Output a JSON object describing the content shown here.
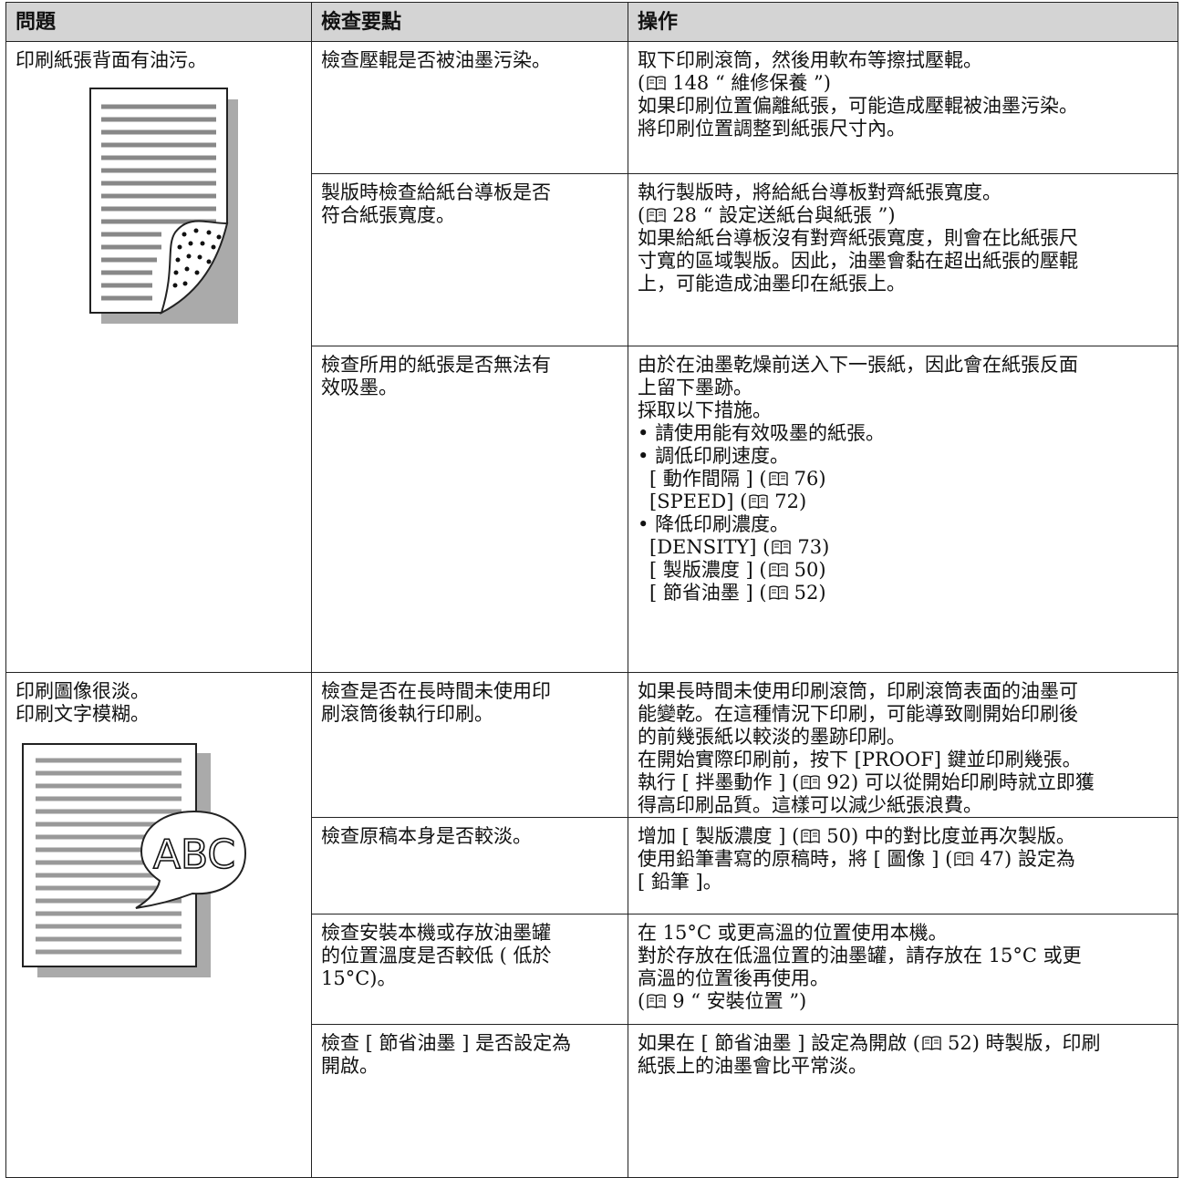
{
  "header": [
    "問題",
    "檢查要點",
    "操作"
  ],
  "problems": [
    {
      "text": [
        "印刷紙張背面有油污。"
      ],
      "checks": [
        {
          "point": [
            "檢查壓輥是否被油墨污染。"
          ],
          "action": [
            [
              "取下印刷滾筒，然後用軟布等擦拭壓輥。"
            ],
            [
              "(",
              "148 “ 維修保養 ”)"
            ],
            [
              "如果印刷位置偏離紙張，可能造成壓輥被油墨污染。"
            ],
            [
              "將印刷位置調整到紙張尺寸內。"
            ]
          ]
        },
        {
          "point": [
            "製版時檢查給紙台導板是否",
            "符合紙張寬度。"
          ],
          "action": [
            [
              "執行製版時，將給紙台導板對齊紙張寬度。"
            ],
            [
              "(",
              "28 “ 設定送紙台與紙張 ”)"
            ],
            [
              "如果給紙台導板沒有對齊紙張寬度，則會在比紙張尺"
            ],
            [
              "寸寬的區域製版。因此，油墨會黏在超出紙張的壓輥"
            ],
            [
              "上，可能造成油墨印在紙張上。"
            ]
          ]
        },
        {
          "point": [
            "檢查所用的紙張是否無法有",
            "效吸墨。"
          ],
          "action": [
            [
              "由於在油墨乾燥前送入下一張紙，因此會在紙張反面"
            ],
            [
              "上留下墨跡。"
            ],
            [
              "採取以下措施。"
            ],
            {
              "bullet": "請使用能有效吸墨的紙張。",
              "sub": []
            },
            {
              "bullet": "調低印刷速度。",
              "sub": [
                [
                  "[ 動作間隔 ] (",
                  "76)"
                ],
                [
                  "[SPEED] (",
                  "72)"
                ]
              ]
            },
            {
              "bullet": "降低印刷濃度。",
              "sub": [
                [
                  "[DENSITY] (",
                  "73)"
                ],
                [
                  "[ 製版濃度 ] (",
                  "50)"
                ],
                [
                  "[ 節省油墨 ] (",
                  "52)"
                ]
              ]
            }
          ]
        }
      ]
    },
    {
      "text": [
        "印刷圖像很淡。",
        "印刷文字模糊。"
      ],
      "illustration_text": "ABC",
      "checks": [
        {
          "point": [
            "檢查是否在長時間未使用印",
            "刷滾筒後執行印刷。"
          ],
          "action": [
            [
              "如果長時間未使用印刷滾筒，印刷滾筒表面的油墨可"
            ],
            [
              "能變乾。在這種情況下印刷，可能導致剛開始印刷後"
            ],
            [
              "的前幾張紙以較淡的墨跡印刷。"
            ],
            [
              "在開始實際印刷前，按下 [PROOF] 鍵並印刷幾張。"
            ],
            [
              "執行 [ 拌墨動作 ] (",
              "92) 可以從開始印刷時就立即獲"
            ],
            [
              "得高印刷品質。這樣可以減少紙張浪費。"
            ]
          ]
        },
        {
          "point": [
            "檢查原稿本身是否較淡。"
          ],
          "action": [
            [
              "增加 [ 製版濃度 ] (",
              "50) 中的對比度並再次製版。"
            ],
            [
              "使用鉛筆書寫的原稿時，將 [ 圖像 ] (",
              "47) 設定為"
            ],
            [
              "[ 鉛筆 ]。"
            ]
          ]
        },
        {
          "point": [
            "檢查安裝本機或存放油墨罐",
            "的位置溫度是否較低 ( 低於",
            "15°C)。"
          ],
          "action": [
            [
              "在 15°C 或更高溫的位置使用本機。"
            ],
            [
              "對於存放在低溫位置的油墨罐，請存放在 15°C 或更"
            ],
            [
              "高溫的位置後再使用。"
            ],
            [
              "(",
              "9 “ 安裝位置 ”)"
            ]
          ]
        },
        {
          "point": [
            "檢查 [ 節省油墨 ] 是否設定為",
            "開啟。"
          ],
          "action": [
            [
              "如果在 [ 節省油墨 ] 設定為開啟 (",
              "52) 時製版，印刷"
            ],
            [
              "紙張上的油墨會比平常淡。"
            ]
          ]
        }
      ]
    }
  ]
}
